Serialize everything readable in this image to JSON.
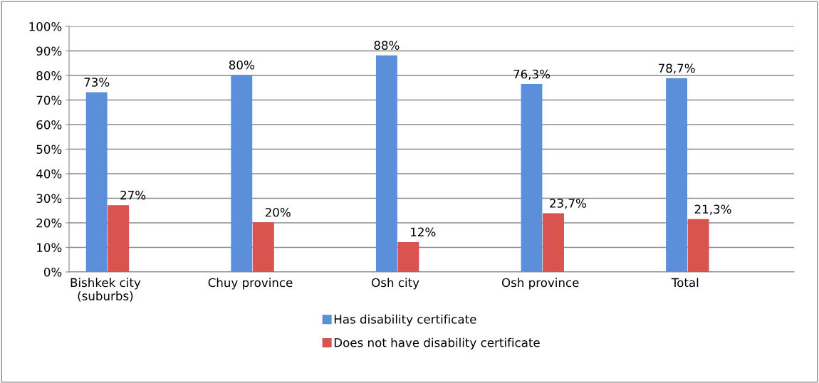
{
  "chart_data": {
    "type": "bar",
    "categories": [
      "Bishkek city\n(suburbs)",
      "Chuy province",
      "Osh city",
      "Osh province",
      "Total"
    ],
    "series": [
      {
        "name": "Has disability certificate",
        "color": "#5b8fd9",
        "values": [
          73,
          80,
          88,
          76.3,
          78.7
        ],
        "value_labels": [
          "73%",
          "80%",
          "88%",
          "76,3%",
          "78,7%"
        ]
      },
      {
        "name": "Does not have disability certificate",
        "color": "#d9534f",
        "values": [
          27,
          20,
          12,
          23.7,
          21.3
        ],
        "value_labels": [
          "27%",
          "20%",
          "12%",
          "23,7%",
          "21,3%"
        ]
      }
    ],
    "ylim": [
      0,
      100
    ],
    "yticks": [
      {
        "value": 0,
        "label": "0%"
      },
      {
        "value": 10,
        "label": "10%"
      },
      {
        "value": 20,
        "label": "20%"
      },
      {
        "value": 30,
        "label": "30%"
      },
      {
        "value": 40,
        "label": "40%"
      },
      {
        "value": 50,
        "label": "50%"
      },
      {
        "value": 60,
        "label": "60%"
      },
      {
        "value": 70,
        "label": "70%"
      },
      {
        "value": 80,
        "label": "80%"
      },
      {
        "value": 90,
        "label": "90%"
      },
      {
        "value": 100,
        "label": "100%"
      }
    ],
    "grid": "y",
    "legend": "bottom"
  }
}
